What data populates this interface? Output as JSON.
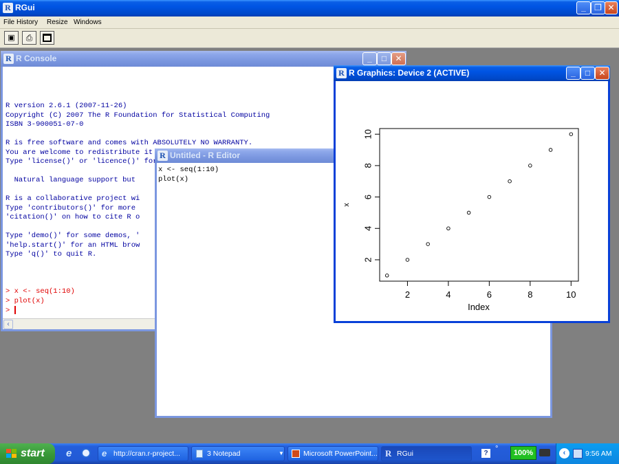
{
  "app": {
    "title": "RGui",
    "menu": [
      "File",
      "History",
      "Resize",
      "Windows"
    ],
    "toolbar_icons": [
      "open-script-icon",
      "print-icon",
      "window-icon"
    ]
  },
  "console": {
    "title": "R Console",
    "lines": [
      "R version 2.6.1 (2007-11-26)",
      "Copyright (C) 2007 The R Foundation for Statistical Computing",
      "ISBN 3-900051-07-0",
      "",
      "R is free software and comes with ABSOLUTELY NO WARRANTY.",
      "You are welcome to redistribute it under certain conditions.",
      "Type 'license()' or 'licence()' for distribution details.",
      "",
      "  Natural language support but",
      "",
      "R is a collaborative project wi",
      "Type 'contributors()' for more",
      "'citation()' on how to cite R o",
      "",
      "Type 'demo()' for some demos, '",
      "'help.start()' for an HTML brow",
      "Type 'q()' to quit R.",
      ""
    ],
    "commands": [
      "> x <- seq(1:10)",
      "> plot(x)",
      "> "
    ]
  },
  "editor": {
    "title": "Untitled - R Editor",
    "lines": [
      "x <- seq(1:10)",
      "plot(x)"
    ]
  },
  "graphics": {
    "title": "R Graphics: Device 2 (ACTIVE)"
  },
  "chart_data": {
    "type": "scatter",
    "x": [
      1,
      2,
      3,
      4,
      5,
      6,
      7,
      8,
      9,
      10
    ],
    "y": [
      1,
      2,
      3,
      4,
      5,
      6,
      7,
      8,
      9,
      10
    ],
    "xlabel": "Index",
    "ylabel": "x",
    "xticks": [
      2,
      4,
      6,
      8,
      10
    ],
    "yticks": [
      2,
      4,
      6,
      8,
      10
    ],
    "xlim": [
      0.64,
      10.36
    ],
    "ylim": [
      0.64,
      10.36
    ],
    "grid": false,
    "point_style": "open-circle"
  },
  "taskbar": {
    "start_label": "start",
    "tasks": [
      "http://cran.r-project...",
      "3 Notepad",
      "Microsoft PowerPoint...",
      "RGui"
    ],
    "battery": "100%",
    "clock": "9:56 AM"
  }
}
